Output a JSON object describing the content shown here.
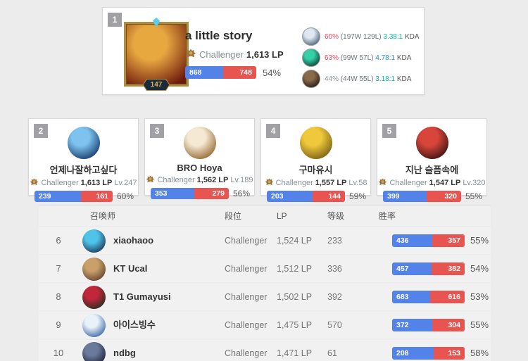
{
  "colors": {
    "blue": "#5383e8",
    "red": "#e8544f",
    "kda_green": "#00bba3",
    "kda_blue": "#1f8ecd",
    "rate_red": "#e84057",
    "rate_gray": "#8b9297"
  },
  "top_player": {
    "rank": "1",
    "name": "a little story",
    "tier": "Challenger",
    "lp": "1,613 LP",
    "level": "147",
    "wins": "868",
    "losses": "748",
    "rate": "54%",
    "win_pct": 53.7,
    "avatar": {
      "inner": "#e8a840",
      "outer": "#6e1a0c"
    },
    "champions": [
      {
        "rate": "60%",
        "record": "(197W 129L)",
        "kda": "3.38:1",
        "kda_label": "KDA",
        "rate_color": "#e84057",
        "kda_color": "#00bba3",
        "avatar": {
          "inner": "#dfe8f2",
          "outer": "#44546e"
        }
      },
      {
        "rate": "63%",
        "record": "(99W 57L)",
        "kda": "4.78:1",
        "kda_label": "KDA",
        "rate_color": "#e84057",
        "kda_color": "#1f8ecd",
        "avatar": {
          "inner": "#35d0a8",
          "outer": "#0a352c"
        }
      },
      {
        "rate": "44%",
        "record": "(44W 55L)",
        "kda": "3.18:1",
        "kda_label": "KDA",
        "rate_color": "#8b9297",
        "kda_color": "#00bba3",
        "avatar": {
          "inner": "#8a6a4a",
          "outer": "#1a1410"
        }
      }
    ]
  },
  "runner_cards": [
    {
      "rank": "2",
      "name": "언제나잘하고싶다",
      "tier": "Challenger",
      "lp": "1,613 LP",
      "level": "Lv.247",
      "wins": "239",
      "losses": "161",
      "rate": "60%",
      "win_pct": 59.8,
      "avatar": {
        "inner": "#7ec3f0",
        "outer": "#0b2d5c"
      }
    },
    {
      "rank": "3",
      "name": "BRO Hoya",
      "tier": "Challenger",
      "lp": "1,562 LP",
      "level": "Lv.189",
      "wins": "353",
      "losses": "279",
      "rate": "56%",
      "win_pct": 55.9,
      "avatar": {
        "inner": "#f5e9d3",
        "outer": "#8a5a20"
      }
    },
    {
      "rank": "4",
      "name": "구마유시",
      "tier": "Challenger",
      "lp": "1,557 LP",
      "level": "Lv.58",
      "wins": "203",
      "losses": "144",
      "rate": "59%",
      "win_pct": 58.5,
      "avatar": {
        "inner": "#f0c83c",
        "outer": "#6b5410"
      }
    },
    {
      "rank": "5",
      "name": "지난 슬픔속에",
      "tier": "Challenger",
      "lp": "1,547 LP",
      "level": "Lv.320",
      "wins": "399",
      "losses": "320",
      "rate": "55%",
      "win_pct": 55.5,
      "avatar": {
        "inner": "#d8453a",
        "outer": "#2a0f0f"
      }
    }
  ],
  "table": {
    "headers": [
      "召唤师",
      "段位",
      "LP",
      "等级",
      "胜率"
    ],
    "rows": [
      {
        "rank": "6",
        "name": "xiaohaoo",
        "tier": "Challenger",
        "lp": "1,524 LP",
        "level": "233",
        "wins": "436",
        "losses": "357",
        "rate": "55%",
        "win_pct": 55.0,
        "avatar": {
          "inner": "#4fc3e8",
          "outer": "#1a2a4a"
        }
      },
      {
        "rank": "7",
        "name": "KT Ucal",
        "tier": "Challenger",
        "lp": "1,512 LP",
        "level": "336",
        "wins": "457",
        "losses": "382",
        "rate": "54%",
        "win_pct": 54.5,
        "avatar": {
          "inner": "#c9a06a",
          "outer": "#5a3a28"
        }
      },
      {
        "rank": "8",
        "name": "T1 Gumayusi",
        "tier": "Challenger",
        "lp": "1,502 LP",
        "level": "392",
        "wins": "683",
        "losses": "616",
        "rate": "53%",
        "win_pct": 52.6,
        "avatar": {
          "inner": "#c0273a",
          "outer": "#15301c"
        }
      },
      {
        "rank": "9",
        "name": "아이스빙수",
        "tier": "Challenger",
        "lp": "1,475 LP",
        "level": "570",
        "wins": "372",
        "losses": "304",
        "rate": "55%",
        "win_pct": 55.0,
        "avatar": {
          "inner": "#e8f2f8",
          "outer": "#2a5a9c"
        }
      },
      {
        "rank": "10",
        "name": "ndbg",
        "tier": "Challenger",
        "lp": "1,471 LP",
        "level": "61",
        "wins": "208",
        "losses": "153",
        "rate": "58%",
        "win_pct": 57.6,
        "avatar": {
          "inner": "#6a7a9c",
          "outer": "#16182c"
        }
      }
    ]
  }
}
